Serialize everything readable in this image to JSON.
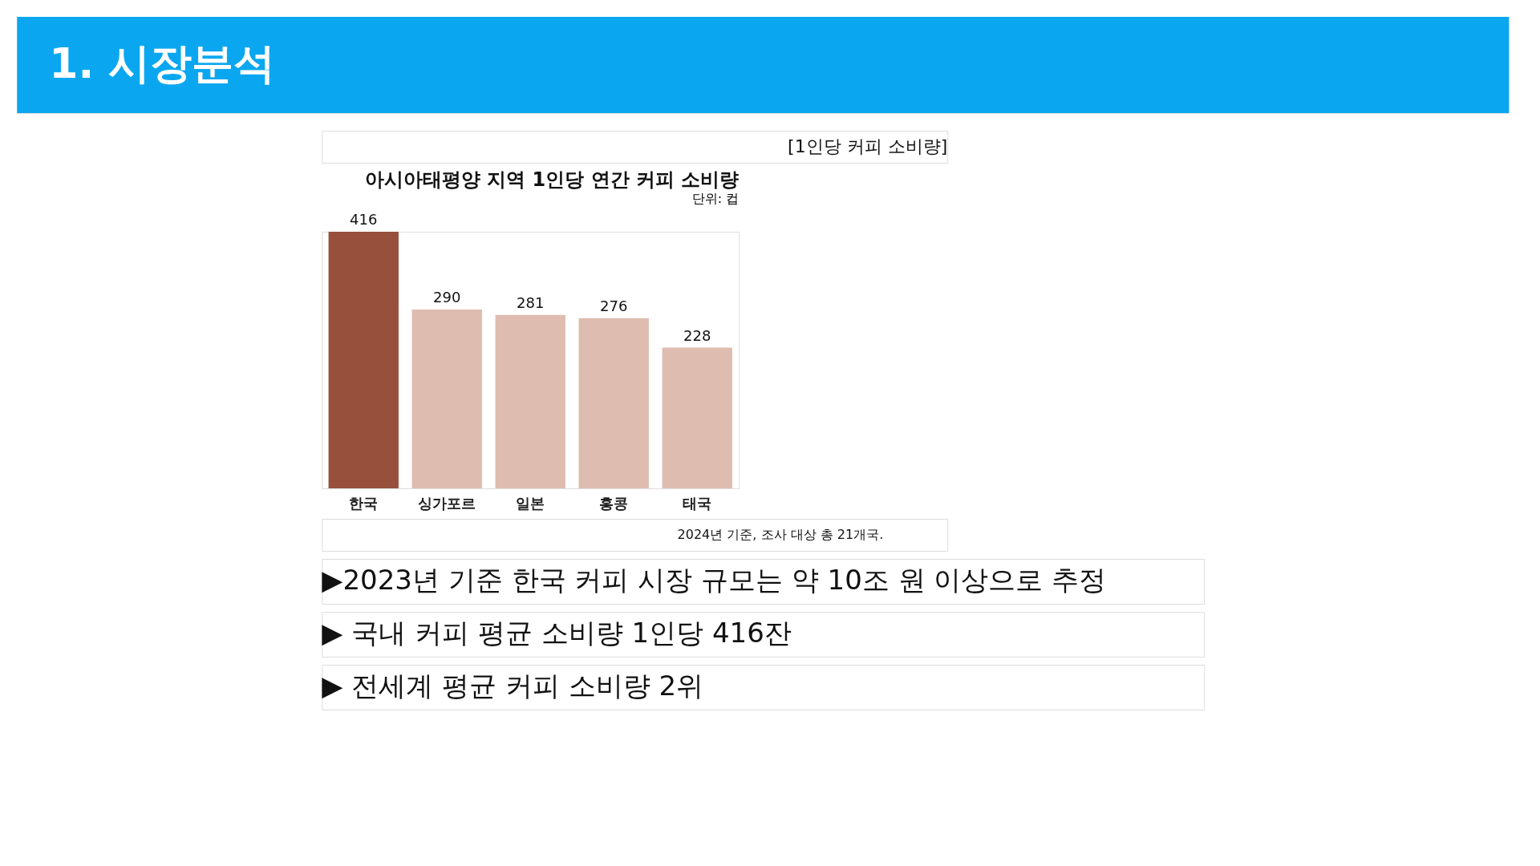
{
  "chart_data": {
    "type": "bar",
    "title": "아시아태평양 지역 1인당 연간 커피 소비량",
    "subtitle": "단위: 컵",
    "categories": [
      "한국",
      "싱가포르",
      "일본",
      "홍콩",
      "태국"
    ],
    "values": [
      416,
      290,
      281,
      276,
      228
    ],
    "colors": [
      "#96503c",
      "#dfbcb0",
      "#dfbcb0",
      "#dfbcb0",
      "#dfbcb0"
    ],
    "data_labels": true,
    "annotations": [
      "1. 시장분석",
      "[1인당 커피 소비량]",
      "2024년 기준, 조사 대상 총 21개국.",
      "▶2023년 기준 한국 커피 시장 규모는 약 10조 원 이상으로 추정",
      "▶ 국내 커피  평균 소비량 1인당 416잔",
      "▶ 전세계 평균 커피 소비량 2위"
    ]
  }
}
